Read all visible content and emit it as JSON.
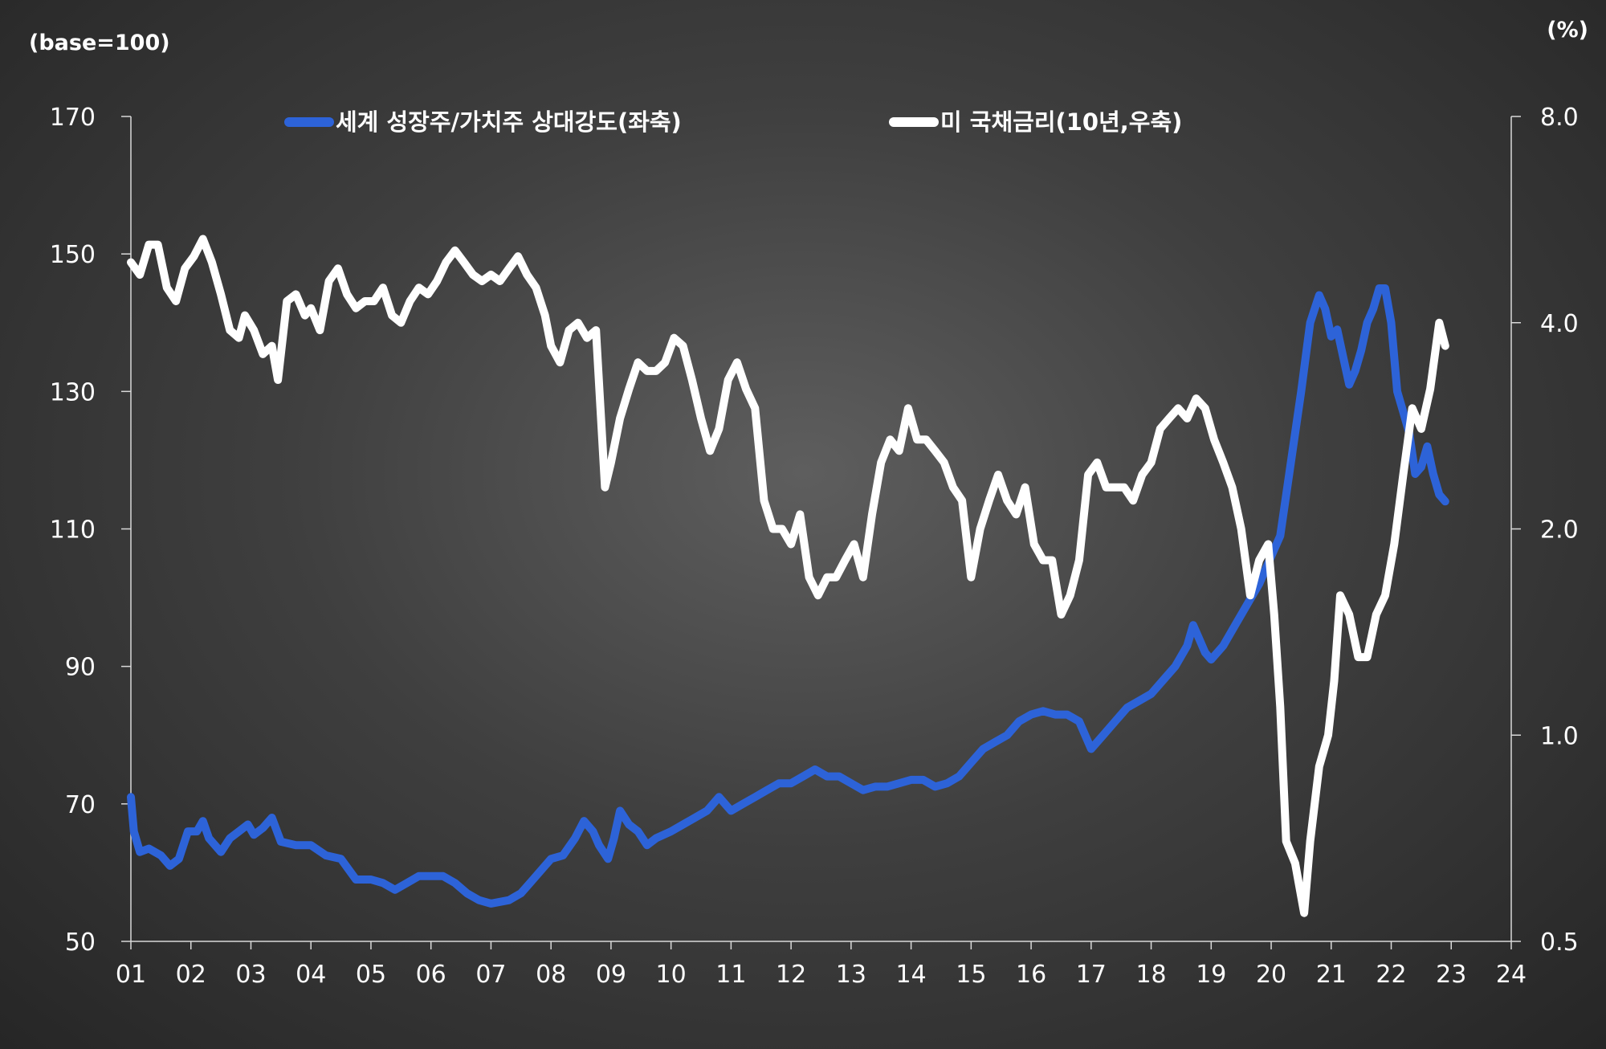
{
  "chart_data": {
    "type": "line",
    "left_axis_unit": "(base=100)",
    "right_axis_unit": "(%)",
    "left_ticks": [
      "170",
      "150",
      "130",
      "110",
      "90",
      "70",
      "50"
    ],
    "right_ticks": [
      "8.0",
      "4.0",
      "2.0",
      "1.0",
      "0.5"
    ],
    "right_scale": "log",
    "x_ticks": [
      "01",
      "02",
      "03",
      "04",
      "05",
      "06",
      "07",
      "08",
      "09",
      "10",
      "11",
      "12",
      "13",
      "14",
      "15",
      "16",
      "17",
      "18",
      "19",
      "20",
      "21",
      "22",
      "23",
      "24"
    ],
    "ylim_left": [
      50,
      170
    ],
    "ylim_right": [
      0.5,
      8.0
    ],
    "xlim": [
      2001,
      2024
    ],
    "legend_position": "top",
    "grid": false,
    "series": [
      {
        "name": "세계 성장주/가치주 상대강도(좌축)",
        "axis": "left",
        "color": "#2d63d8",
        "points": [
          [
            2001.0,
            71
          ],
          [
            2001.05,
            66
          ],
          [
            2001.15,
            63
          ],
          [
            2001.3,
            63.5
          ],
          [
            2001.5,
            62.5
          ],
          [
            2001.65,
            61
          ],
          [
            2001.8,
            62
          ],
          [
            2001.95,
            66
          ],
          [
            2002.1,
            66
          ],
          [
            2002.2,
            67.5
          ],
          [
            2002.3,
            65
          ],
          [
            2002.5,
            63
          ],
          [
            2002.65,
            65
          ],
          [
            2002.8,
            66
          ],
          [
            2002.95,
            67
          ],
          [
            2003.05,
            65.5
          ],
          [
            2003.2,
            66.5
          ],
          [
            2003.35,
            68
          ],
          [
            2003.5,
            64.5
          ],
          [
            2003.75,
            64
          ],
          [
            2004.0,
            64
          ],
          [
            2004.25,
            62.5
          ],
          [
            2004.5,
            62
          ],
          [
            2004.75,
            59
          ],
          [
            2005.0,
            59
          ],
          [
            2005.2,
            58.5
          ],
          [
            2005.4,
            57.5
          ],
          [
            2005.6,
            58.5
          ],
          [
            2005.8,
            59.5
          ],
          [
            2006.0,
            59.5
          ],
          [
            2006.2,
            59.5
          ],
          [
            2006.4,
            58.5
          ],
          [
            2006.6,
            57
          ],
          [
            2006.8,
            56
          ],
          [
            2007.0,
            55.5
          ],
          [
            2007.3,
            56
          ],
          [
            2007.5,
            57
          ],
          [
            2007.7,
            59
          ],
          [
            2007.9,
            61
          ],
          [
            2008.0,
            62
          ],
          [
            2008.2,
            62.5
          ],
          [
            2008.4,
            65
          ],
          [
            2008.55,
            67.5
          ],
          [
            2008.7,
            66
          ],
          [
            2008.8,
            64
          ],
          [
            2008.95,
            62
          ],
          [
            2009.05,
            65
          ],
          [
            2009.15,
            69
          ],
          [
            2009.3,
            67
          ],
          [
            2009.45,
            66
          ],
          [
            2009.6,
            64
          ],
          [
            2009.75,
            65
          ],
          [
            2010.0,
            66
          ],
          [
            2010.2,
            67
          ],
          [
            2010.4,
            68
          ],
          [
            2010.6,
            69
          ],
          [
            2010.8,
            71
          ],
          [
            2011.0,
            69
          ],
          [
            2011.2,
            70
          ],
          [
            2011.4,
            71
          ],
          [
            2011.6,
            72
          ],
          [
            2011.8,
            73
          ],
          [
            2012.0,
            73
          ],
          [
            2012.2,
            74
          ],
          [
            2012.4,
            75
          ],
          [
            2012.6,
            74
          ],
          [
            2012.8,
            74
          ],
          [
            2013.0,
            73
          ],
          [
            2013.2,
            72
          ],
          [
            2013.4,
            72.5
          ],
          [
            2013.6,
            72.5
          ],
          [
            2013.8,
            73
          ],
          [
            2014.0,
            73.5
          ],
          [
            2014.2,
            73.5
          ],
          [
            2014.4,
            72.5
          ],
          [
            2014.6,
            73
          ],
          [
            2014.8,
            74
          ],
          [
            2015.0,
            76
          ],
          [
            2015.2,
            78
          ],
          [
            2015.4,
            79
          ],
          [
            2015.6,
            80
          ],
          [
            2015.8,
            82
          ],
          [
            2016.0,
            83
          ],
          [
            2016.2,
            83.5
          ],
          [
            2016.4,
            83
          ],
          [
            2016.6,
            83
          ],
          [
            2016.8,
            82
          ],
          [
            2017.0,
            78
          ],
          [
            2017.2,
            80
          ],
          [
            2017.4,
            82
          ],
          [
            2017.6,
            84
          ],
          [
            2017.8,
            85
          ],
          [
            2018.0,
            86
          ],
          [
            2018.2,
            88
          ],
          [
            2018.4,
            90
          ],
          [
            2018.6,
            93
          ],
          [
            2018.7,
            96
          ],
          [
            2018.8,
            94
          ],
          [
            2018.9,
            92
          ],
          [
            2019.0,
            91
          ],
          [
            2019.2,
            93
          ],
          [
            2019.4,
            96
          ],
          [
            2019.6,
            99
          ],
          [
            2019.8,
            102
          ],
          [
            2020.0,
            106
          ],
          [
            2020.15,
            109
          ],
          [
            2020.3,
            118
          ],
          [
            2020.5,
            130
          ],
          [
            2020.65,
            140
          ],
          [
            2020.8,
            144
          ],
          [
            2020.9,
            142
          ],
          [
            2021.0,
            138
          ],
          [
            2021.1,
            139
          ],
          [
            2021.2,
            135
          ],
          [
            2021.3,
            131
          ],
          [
            2021.4,
            133
          ],
          [
            2021.5,
            136
          ],
          [
            2021.6,
            140
          ],
          [
            2021.7,
            142
          ],
          [
            2021.8,
            145
          ],
          [
            2021.9,
            145
          ],
          [
            2022.0,
            140
          ],
          [
            2022.1,
            130
          ],
          [
            2022.2,
            127
          ],
          [
            2022.3,
            124
          ],
          [
            2022.4,
            118
          ],
          [
            2022.5,
            119
          ],
          [
            2022.6,
            122
          ],
          [
            2022.7,
            118
          ],
          [
            2022.8,
            115
          ],
          [
            2022.9,
            114
          ]
        ]
      },
      {
        "name": "미 국채금리(10년,우축)",
        "axis": "right",
        "color": "#ffffff",
        "points": [
          [
            2001.0,
            4.9
          ],
          [
            2001.15,
            4.7
          ],
          [
            2001.3,
            5.2
          ],
          [
            2001.45,
            5.2
          ],
          [
            2001.6,
            4.5
          ],
          [
            2001.75,
            4.3
          ],
          [
            2001.9,
            4.8
          ],
          [
            2002.05,
            5.0
          ],
          [
            2002.2,
            5.3
          ],
          [
            2002.35,
            4.9
          ],
          [
            2002.5,
            4.4
          ],
          [
            2002.65,
            3.9
          ],
          [
            2002.8,
            3.8
          ],
          [
            2002.9,
            4.1
          ],
          [
            2003.05,
            3.9
          ],
          [
            2003.2,
            3.6
          ],
          [
            2003.35,
            3.7
          ],
          [
            2003.45,
            3.3
          ],
          [
            2003.6,
            4.3
          ],
          [
            2003.75,
            4.4
          ],
          [
            2003.9,
            4.1
          ],
          [
            2004.0,
            4.2
          ],
          [
            2004.15,
            3.9
          ],
          [
            2004.3,
            4.6
          ],
          [
            2004.45,
            4.8
          ],
          [
            2004.6,
            4.4
          ],
          [
            2004.75,
            4.2
          ],
          [
            2004.9,
            4.3
          ],
          [
            2005.05,
            4.3
          ],
          [
            2005.2,
            4.5
          ],
          [
            2005.35,
            4.1
          ],
          [
            2005.5,
            4.0
          ],
          [
            2005.65,
            4.3
          ],
          [
            2005.8,
            4.5
          ],
          [
            2005.95,
            4.4
          ],
          [
            2006.1,
            4.6
          ],
          [
            2006.25,
            4.9
          ],
          [
            2006.4,
            5.1
          ],
          [
            2006.55,
            4.9
          ],
          [
            2006.7,
            4.7
          ],
          [
            2006.85,
            4.6
          ],
          [
            2007.0,
            4.7
          ],
          [
            2007.15,
            4.6
          ],
          [
            2007.3,
            4.8
          ],
          [
            2007.45,
            5.0
          ],
          [
            2007.6,
            4.7
          ],
          [
            2007.75,
            4.5
          ],
          [
            2007.9,
            4.1
          ],
          [
            2008.0,
            3.7
          ],
          [
            2008.15,
            3.5
          ],
          [
            2008.3,
            3.9
          ],
          [
            2008.45,
            4.0
          ],
          [
            2008.6,
            3.8
          ],
          [
            2008.75,
            3.9
          ],
          [
            2008.9,
            2.3
          ],
          [
            2009.0,
            2.5
          ],
          [
            2009.15,
            2.9
          ],
          [
            2009.3,
            3.2
          ],
          [
            2009.45,
            3.5
          ],
          [
            2009.6,
            3.4
          ],
          [
            2009.75,
            3.4
          ],
          [
            2009.9,
            3.5
          ],
          [
            2010.05,
            3.8
          ],
          [
            2010.2,
            3.7
          ],
          [
            2010.35,
            3.3
          ],
          [
            2010.5,
            2.9
          ],
          [
            2010.65,
            2.6
          ],
          [
            2010.8,
            2.8
          ],
          [
            2010.95,
            3.3
          ],
          [
            2011.1,
            3.5
          ],
          [
            2011.25,
            3.2
          ],
          [
            2011.4,
            3.0
          ],
          [
            2011.55,
            2.2
          ],
          [
            2011.7,
            2.0
          ],
          [
            2011.85,
            2.0
          ],
          [
            2012.0,
            1.9
          ],
          [
            2012.15,
            2.1
          ],
          [
            2012.3,
            1.7
          ],
          [
            2012.45,
            1.6
          ],
          [
            2012.6,
            1.7
          ],
          [
            2012.75,
            1.7
          ],
          [
            2012.9,
            1.8
          ],
          [
            2013.05,
            1.9
          ],
          [
            2013.2,
            1.7
          ],
          [
            2013.35,
            2.1
          ],
          [
            2013.5,
            2.5
          ],
          [
            2013.65,
            2.7
          ],
          [
            2013.8,
            2.6
          ],
          [
            2013.95,
            3.0
          ],
          [
            2014.1,
            2.7
          ],
          [
            2014.25,
            2.7
          ],
          [
            2014.4,
            2.6
          ],
          [
            2014.55,
            2.5
          ],
          [
            2014.7,
            2.3
          ],
          [
            2014.85,
            2.2
          ],
          [
            2015.0,
            1.7
          ],
          [
            2015.15,
            2.0
          ],
          [
            2015.3,
            2.2
          ],
          [
            2015.45,
            2.4
          ],
          [
            2015.6,
            2.2
          ],
          [
            2015.75,
            2.1
          ],
          [
            2015.9,
            2.3
          ],
          [
            2016.05,
            1.9
          ],
          [
            2016.2,
            1.8
          ],
          [
            2016.35,
            1.8
          ],
          [
            2016.5,
            1.5
          ],
          [
            2016.65,
            1.6
          ],
          [
            2016.8,
            1.8
          ],
          [
            2016.95,
            2.4
          ],
          [
            2017.1,
            2.5
          ],
          [
            2017.25,
            2.3
          ],
          [
            2017.4,
            2.3
          ],
          [
            2017.55,
            2.3
          ],
          [
            2017.7,
            2.2
          ],
          [
            2017.85,
            2.4
          ],
          [
            2018.0,
            2.5
          ],
          [
            2018.15,
            2.8
          ],
          [
            2018.3,
            2.9
          ],
          [
            2018.45,
            3.0
          ],
          [
            2018.6,
            2.9
          ],
          [
            2018.75,
            3.1
          ],
          [
            2018.9,
            3.0
          ],
          [
            2019.05,
            2.7
          ],
          [
            2019.2,
            2.5
          ],
          [
            2019.35,
            2.3
          ],
          [
            2019.5,
            2.0
          ],
          [
            2019.65,
            1.6
          ],
          [
            2019.8,
            1.8
          ],
          [
            2019.95,
            1.9
          ],
          [
            2020.05,
            1.5
          ],
          [
            2020.15,
            1.1
          ],
          [
            2020.25,
            0.7
          ],
          [
            2020.4,
            0.65
          ],
          [
            2020.55,
            0.55
          ],
          [
            2020.65,
            0.7
          ],
          [
            2020.8,
            0.9
          ],
          [
            2020.95,
            1.0
          ],
          [
            2021.05,
            1.2
          ],
          [
            2021.15,
            1.6
          ],
          [
            2021.3,
            1.5
          ],
          [
            2021.45,
            1.3
          ],
          [
            2021.6,
            1.3
          ],
          [
            2021.75,
            1.5
          ],
          [
            2021.9,
            1.6
          ],
          [
            2022.05,
            1.9
          ],
          [
            2022.2,
            2.4
          ],
          [
            2022.35,
            3.0
          ],
          [
            2022.5,
            2.8
          ],
          [
            2022.65,
            3.2
          ],
          [
            2022.8,
            4.0
          ],
          [
            2022.9,
            3.7
          ]
        ]
      }
    ]
  }
}
